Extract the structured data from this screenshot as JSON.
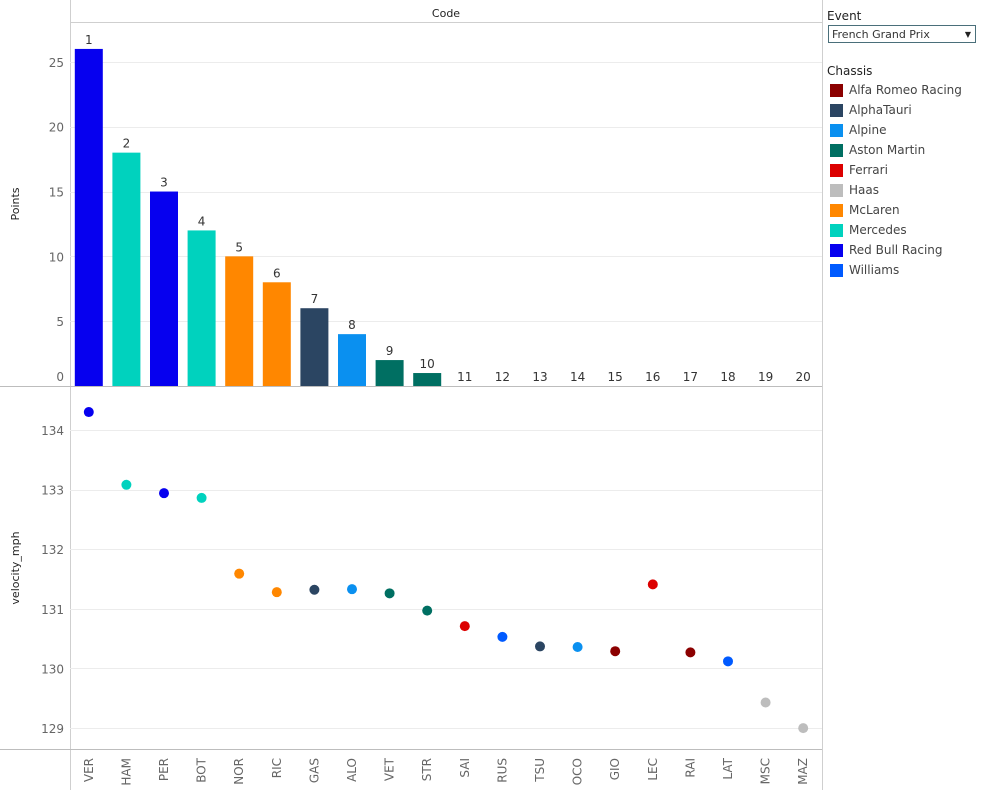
{
  "header": {
    "code_label": "Code"
  },
  "filter": {
    "title": "Event",
    "selected": "French Grand Prix"
  },
  "legend": {
    "title": "Chassis",
    "items": [
      {
        "name": "Alfa Romeo Racing",
        "color": "#8b0000"
      },
      {
        "name": "AlphaTauri",
        "color": "#2b4562"
      },
      {
        "name": "Alpine",
        "color": "#0a90f0"
      },
      {
        "name": "Aston Martin",
        "color": "#006f62"
      },
      {
        "name": "Ferrari",
        "color": "#dc0000"
      },
      {
        "name": "Haas",
        "color": "#bdbdbd"
      },
      {
        "name": "McLaren",
        "color": "#ff8700"
      },
      {
        "name": "Mercedes",
        "color": "#00d2be"
      },
      {
        "name": "Red Bull Racing",
        "color": "#0600ef"
      },
      {
        "name": "Williams",
        "color": "#005aff"
      }
    ]
  },
  "chart_data": [
    {
      "type": "bar",
      "title": "Code",
      "ylabel": "Points",
      "ylim": [
        0,
        28
      ],
      "yticks": [
        0,
        5,
        10,
        15,
        20,
        25
      ],
      "categories": [
        "VER",
        "HAM",
        "PER",
        "BOT",
        "NOR",
        "RIC",
        "GAS",
        "ALO",
        "VET",
        "STR",
        "SAI",
        "RUS",
        "TSU",
        "OCO",
        "GIO",
        "LEC",
        "RAI",
        "LAT",
        "MSC",
        "MAZ"
      ],
      "ranks": [
        "1",
        "2",
        "3",
        "4",
        "5",
        "6",
        "7",
        "8",
        "9",
        "10",
        "11",
        "12",
        "13",
        "14",
        "15",
        "16",
        "17",
        "18",
        "19",
        "20"
      ],
      "values": [
        26,
        18,
        15,
        12,
        10,
        8,
        6,
        4,
        2,
        1,
        0,
        0,
        0,
        0,
        0,
        0,
        0,
        0,
        0,
        0
      ],
      "chassis": [
        "Red Bull Racing",
        "Mercedes",
        "Red Bull Racing",
        "Mercedes",
        "McLaren",
        "McLaren",
        "AlphaTauri",
        "Alpine",
        "Aston Martin",
        "Aston Martin",
        "Ferrari",
        "Williams",
        "AlphaTauri",
        "Alpine",
        "Alfa Romeo Racing",
        "Ferrari",
        "Alfa Romeo Racing",
        "Williams",
        "Haas",
        "Haas"
      ]
    },
    {
      "type": "scatter",
      "ylabel": "velocity_mph",
      "ylim": [
        128.65,
        134.72
      ],
      "yticks": [
        129,
        130,
        131,
        132,
        133,
        134
      ],
      "categories": [
        "VER",
        "HAM",
        "PER",
        "BOT",
        "NOR",
        "RIC",
        "GAS",
        "ALO",
        "VET",
        "STR",
        "SAI",
        "RUS",
        "TSU",
        "OCO",
        "GIO",
        "LEC",
        "RAI",
        "LAT",
        "MSC",
        "MAZ"
      ],
      "values": [
        134.3,
        133.08,
        132.94,
        132.86,
        131.59,
        131.28,
        131.32,
        131.33,
        131.26,
        130.97,
        130.71,
        130.53,
        130.37,
        130.36,
        130.29,
        131.41,
        130.27,
        130.12,
        129.43,
        129.0
      ],
      "chassis": [
        "Red Bull Racing",
        "Mercedes",
        "Red Bull Racing",
        "Mercedes",
        "McLaren",
        "McLaren",
        "AlphaTauri",
        "Alpine",
        "Aston Martin",
        "Aston Martin",
        "Ferrari",
        "Williams",
        "AlphaTauri",
        "Alpine",
        "Alfa Romeo Racing",
        "Ferrari",
        "Alfa Romeo Racing",
        "Williams",
        "Haas",
        "Haas"
      ]
    }
  ]
}
